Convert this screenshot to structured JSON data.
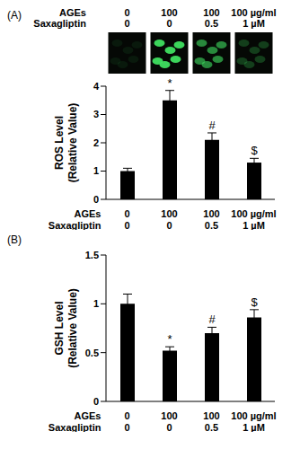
{
  "image_strip": {
    "rows": [
      {
        "label": "AGEs",
        "values": [
          "0",
          "100",
          "100",
          "100 µg/ml"
        ]
      },
      {
        "label": "Saxagliptin",
        "values": [
          "0",
          "0",
          "0.5",
          "1 µM"
        ]
      }
    ]
  },
  "chart_data": [
    {
      "type": "bar",
      "title": "(A)",
      "y_label": "ROS Level (Relative Value)",
      "x_table": {
        "rows": [
          {
            "label": "AGEs",
            "values": [
              "0",
              "100",
              "100",
              "100 µg/ml"
            ]
          },
          {
            "label": "Saxagliptin",
            "values": [
              "0",
              "0",
              "0.5",
              "1 µM"
            ]
          }
        ]
      },
      "values": [
        1,
        3.5,
        2.1,
        1.3
      ],
      "errors": [
        0.1,
        0.35,
        0.25,
        0.15
      ],
      "annotations": [
        null,
        "*",
        "#",
        "$"
      ],
      "color": "#000000",
      "ylim": [
        0,
        4
      ],
      "yticks": [
        0,
        1,
        2,
        3,
        4
      ]
    },
    {
      "type": "bar",
      "title": "(B)",
      "y_label": "GSH Level (Relative Value)",
      "x_table": {
        "rows": [
          {
            "label": "AGEs",
            "values": [
              "0",
              "100",
              "100",
              "100 µg/ml"
            ]
          },
          {
            "label": "Saxagliptin",
            "values": [
              "0",
              "0",
              "0.5",
              "1 µM"
            ]
          }
        ]
      },
      "values": [
        1,
        0.52,
        0.7,
        0.86
      ],
      "errors": [
        0.1,
        0.04,
        0.06,
        0.08
      ],
      "annotations": [
        null,
        "*",
        "#",
        "$"
      ],
      "color": "#000000",
      "ylim": [
        0,
        1.5
      ],
      "yticks": [
        0,
        0.5,
        1,
        1.5
      ]
    }
  ]
}
